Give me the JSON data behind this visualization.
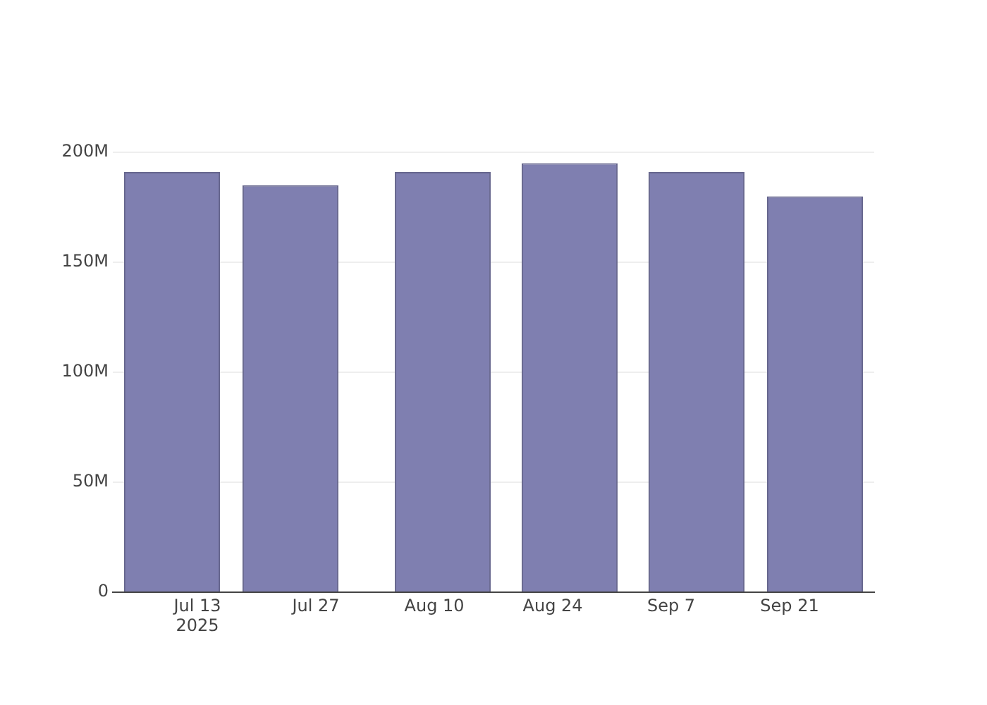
{
  "chart_data": {
    "type": "bar",
    "x": [
      "2025-07-10",
      "2025-07-24",
      "2025-08-11",
      "2025-08-26",
      "2025-09-10",
      "2025-09-24"
    ],
    "values": [
      191000000,
      185000000,
      191000000,
      195000000,
      191000000,
      180000000
    ],
    "color": "#7f7fb0",
    "xlim": [
      "2025-07-03",
      "2025-10-01"
    ],
    "xticks": [
      {
        "value": "2025-07-13",
        "label": "Jul 13\n2025"
      },
      {
        "value": "2025-07-27",
        "label": "Jul 27"
      },
      {
        "value": "2025-08-10",
        "label": "Aug 10"
      },
      {
        "value": "2025-08-24",
        "label": "Aug 24"
      },
      {
        "value": "2025-09-07",
        "label": "Sep 7"
      },
      {
        "value": "2025-09-21",
        "label": "Sep 21"
      }
    ],
    "ylim": [
      0,
      200000000
    ],
    "yticks": [
      {
        "value": 0,
        "label": "0"
      },
      {
        "value": 50000000,
        "label": "50M"
      },
      {
        "value": 100000000,
        "label": "100M"
      },
      {
        "value": 150000000,
        "label": "150M"
      },
      {
        "value": 200000000,
        "label": "200M"
      }
    ],
    "grid": "y",
    "legend": false
  }
}
